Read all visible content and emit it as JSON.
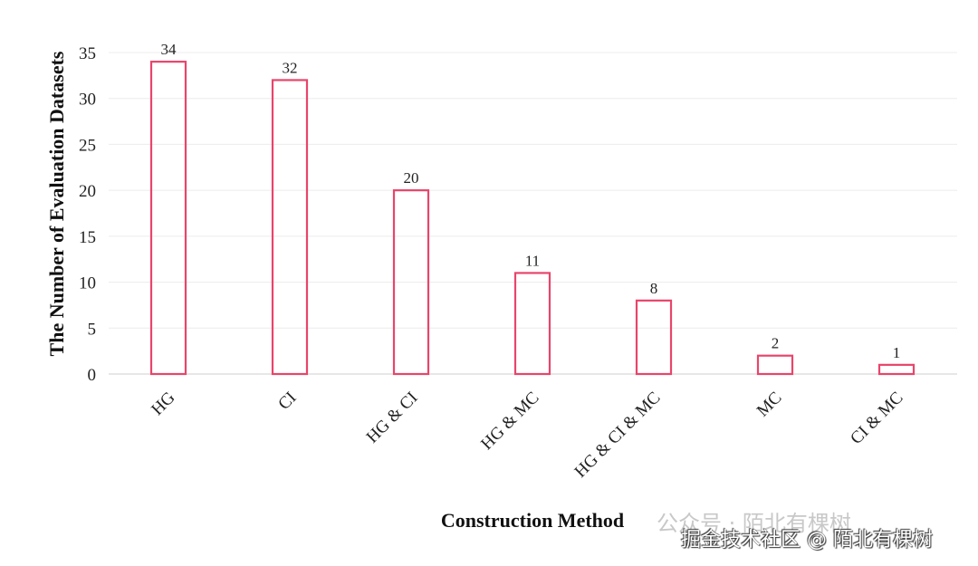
{
  "chart_data": {
    "type": "bar",
    "title": "",
    "xlabel": "Construction Method",
    "ylabel": "The Number of Evaluation Datasets",
    "categories": [
      "HG",
      "CI",
      "HG & CI",
      "HG & MC",
      "HG & CI & MC",
      "MC",
      "CI & MC"
    ],
    "values": [
      34,
      32,
      20,
      11,
      8,
      2,
      1
    ],
    "ylim": [
      0,
      35
    ],
    "yticks": [
      0,
      5,
      10,
      15,
      20,
      25,
      30,
      35
    ],
    "grid": true,
    "bar_style": "outline",
    "bar_color": "#e8456b"
  },
  "watermark": {
    "line1": "公众号 · 陌北有棵树",
    "line2": "掘金技术社区 @ 陌北有棵树"
  }
}
